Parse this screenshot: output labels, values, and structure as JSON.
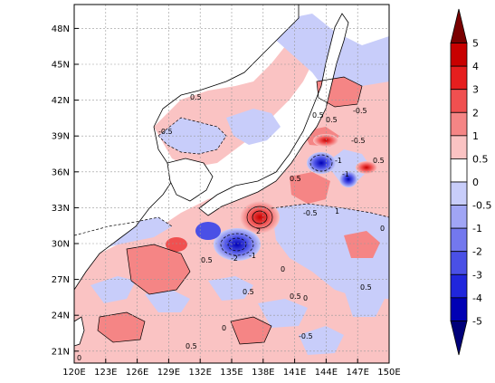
{
  "map": {
    "lon_ticks": [
      "120E",
      "123E",
      "126E",
      "129E",
      "132E",
      "135E",
      "138E",
      "141E",
      "144E",
      "147E",
      "150E"
    ],
    "lat_ticks": [
      "21N",
      "24N",
      "27N",
      "30N",
      "33N",
      "36N",
      "39N",
      "42N",
      "45N",
      "48N"
    ],
    "lon_range": [
      120,
      150
    ],
    "lat_range": [
      20,
      50
    ],
    "grid": "dashed",
    "land_fill": "white",
    "contour_labels": [
      "-0.5",
      "0.5",
      "-0.5",
      "0.5",
      "-1",
      "-1",
      "0.5",
      "0.5",
      "-0.5",
      "0.5",
      "-0.5",
      "1",
      "2",
      "-2",
      "-1",
      "0.5",
      "0.5",
      "0",
      "0.5",
      "0",
      "0",
      "-0.5",
      "0.5",
      "0",
      "0.5",
      "0"
    ]
  },
  "colorbar": {
    "levels": [
      "5",
      "4",
      "3",
      "2",
      "1",
      "0.5",
      "0",
      "-0.5",
      "-1",
      "-2",
      "-3",
      "-4",
      "-5"
    ],
    "colors": [
      "#7a0000",
      "#c80000",
      "#e61e1e",
      "#f05050",
      "#f58585",
      "#fac3c3",
      "#ffffff",
      "#c8cdfa",
      "#a0a5f5",
      "#7378ee",
      "#4a50e6",
      "#2026dc",
      "#0000b4",
      "#00007a"
    ]
  }
}
